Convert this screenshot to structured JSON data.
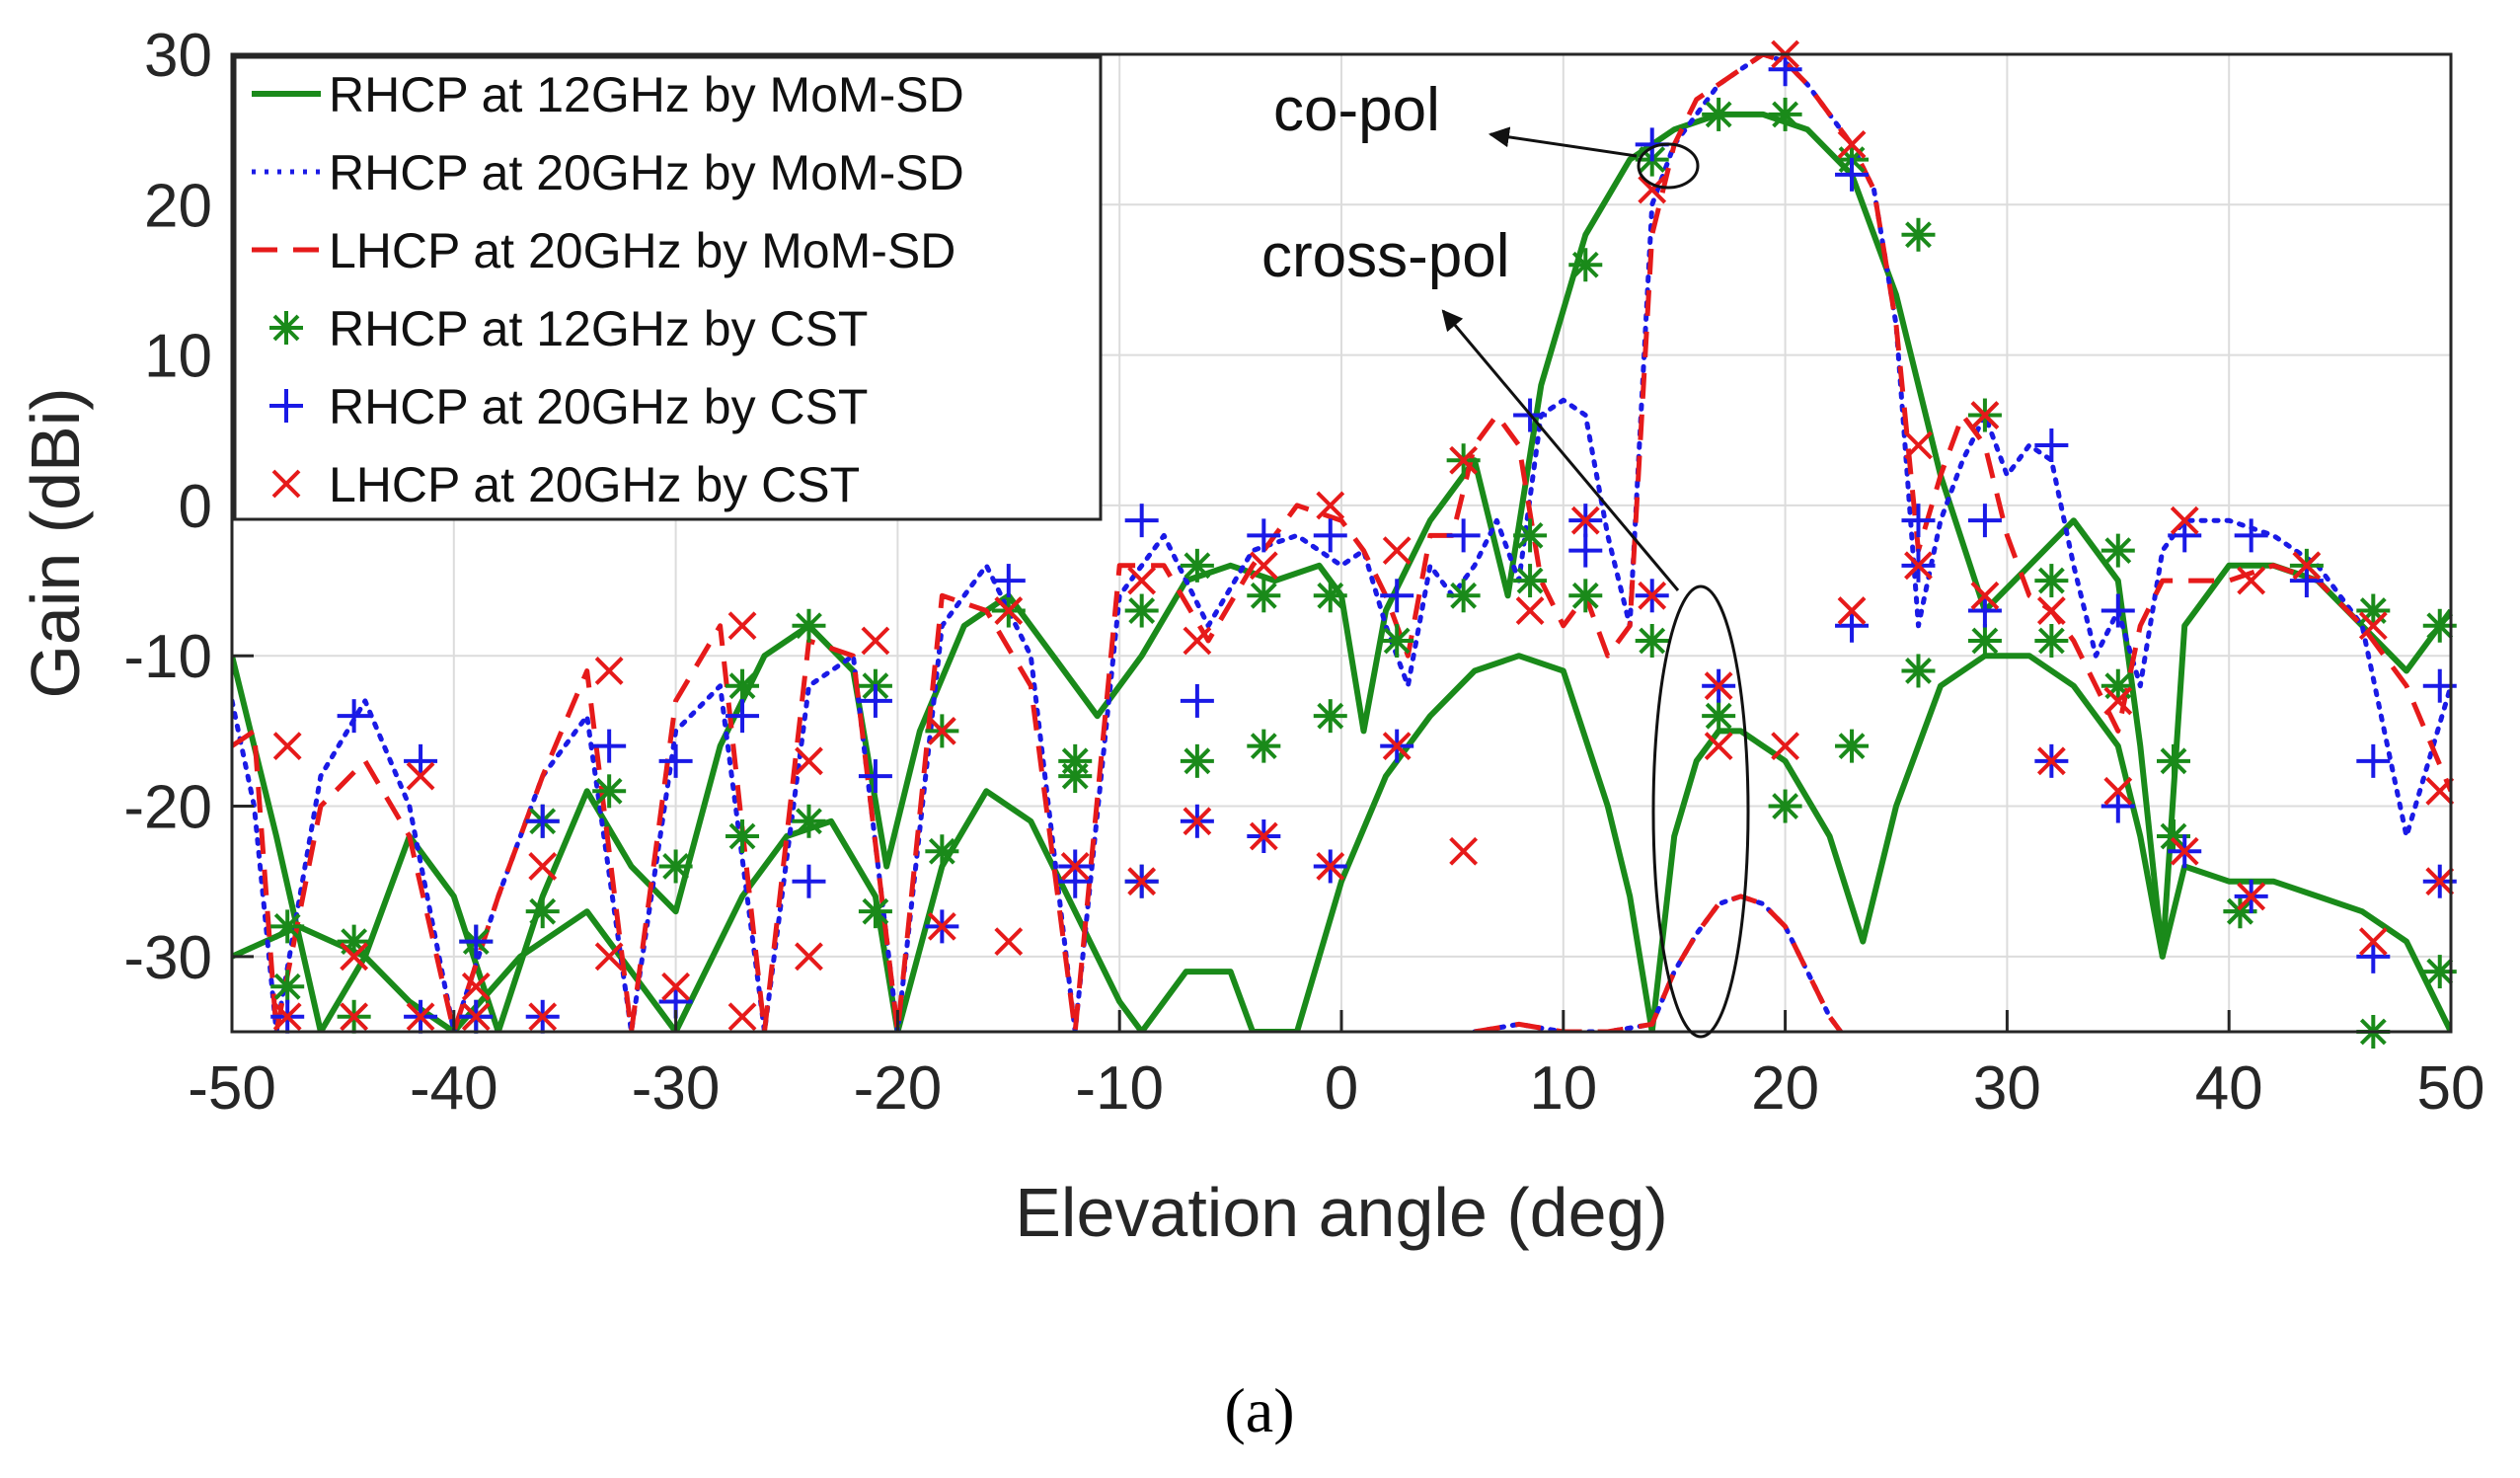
{
  "chart_data": {
    "type": "line",
    "xlabel": "Elevation angle (deg)",
    "ylabel": "Gain (dBi)",
    "xlim": [
      -50,
      50
    ],
    "ylim": [
      -35,
      30
    ],
    "xticks": [
      -50,
      -40,
      -30,
      -20,
      -10,
      0,
      10,
      20,
      30,
      40,
      50
    ],
    "yticks": [
      30,
      20,
      10,
      0,
      -10,
      -20,
      -30
    ],
    "grid": true,
    "legend_position": "top-left",
    "caption": "(a)",
    "annotations": [
      {
        "text": "co-pol",
        "points_to": [
          15.5,
          23
        ]
      },
      {
        "text": "cross-pol",
        "points_to": [
          16.5,
          -20
        ]
      }
    ],
    "series": [
      {
        "name": "RHCP at 12GHz by MoM-SD",
        "style": "solid",
        "color": "#1a8a1a",
        "x": [
          -50,
          -48,
          -46,
          -44,
          -42,
          -40,
          -38,
          -36,
          -34,
          -32,
          -30,
          -28,
          -26,
          -24,
          -22,
          -20.5,
          -19,
          -17,
          -15,
          -13,
          -11,
          -9,
          -7,
          -5,
          -3,
          -1,
          0,
          1,
          2,
          4,
          6,
          7.5,
          9,
          11,
          13,
          15,
          17,
          18,
          19,
          21,
          23,
          25,
          27,
          29,
          31,
          33,
          35,
          36,
          37,
          38,
          40,
          42,
          44,
          46,
          48,
          50
        ],
        "y": [
          -10,
          -22,
          -35,
          -30,
          -22,
          -26,
          -35,
          -26,
          -19,
          -24,
          -27,
          -16,
          -10,
          -8,
          -11,
          -24,
          -15,
          -8,
          -6,
          -10,
          -14,
          -10,
          -5,
          -4,
          -5,
          -4,
          -6,
          -15,
          -7,
          -1,
          3,
          -6,
          8,
          18,
          23,
          25,
          26,
          26,
          26,
          25,
          22,
          14,
          2,
          -7,
          -4,
          -1,
          -5,
          -16,
          -30,
          -8,
          -4,
          -4,
          -5,
          -8,
          -11,
          -7
        ]
      },
      {
        "name": "RHCP at 12GHz by MoM-SD (cross-pol)",
        "style": "solid",
        "color": "#1a8a1a",
        "legend": false,
        "x": [
          -50,
          -47,
          -44,
          -42,
          -40,
          -37,
          -34,
          -32,
          -30,
          -27,
          -25,
          -23,
          -21,
          -20,
          -18,
          -16,
          -14,
          -12,
          -10,
          -9,
          -7,
          -5,
          -4,
          -3,
          -2,
          0,
          2,
          4,
          6,
          8,
          10,
          12,
          13,
          14,
          15,
          16,
          17,
          18,
          19,
          20,
          22,
          23.5,
          25,
          27,
          29,
          31,
          33,
          35,
          36,
          37,
          38,
          40,
          42,
          44,
          46,
          48,
          50
        ],
        "y": [
          -30,
          -28,
          -30,
          -33,
          -35,
          -30,
          -27,
          -31,
          -35,
          -26,
          -22,
          -21,
          -26,
          -35,
          -24,
          -19,
          -21,
          -27,
          -33,
          -35,
          -31,
          -31,
          -35,
          -35,
          -35,
          -25,
          -18,
          -14,
          -11,
          -10,
          -11,
          -20,
          -26,
          -35,
          -22,
          -17,
          -15,
          -15,
          -16,
          -17,
          -22,
          -29,
          -20,
          -12,
          -10,
          -10,
          -12,
          -16,
          -22,
          -30,
          -24,
          -25,
          -25,
          -26,
          -27,
          -29,
          -35
        ]
      },
      {
        "name": "RHCP at 20GHz by MoM-SD",
        "style": "dotted",
        "color": "#1a1ae6",
        "x": [
          -50,
          -49,
          -48,
          -46,
          -44,
          -42,
          -40,
          -38,
          -36,
          -34,
          -32,
          -30,
          -28,
          -26,
          -24,
          -22,
          -20,
          -18,
          -16,
          -14,
          -12,
          -10,
          -8,
          -6,
          -4,
          -2,
          0,
          1,
          2,
          3,
          4,
          5,
          6,
          7,
          8,
          9,
          10,
          11,
          12,
          13,
          14,
          15,
          16,
          17,
          18,
          19,
          20,
          21,
          22,
          23,
          24,
          25,
          26,
          27,
          28,
          29,
          30,
          31,
          32,
          33,
          34,
          35,
          36,
          37,
          38,
          40,
          42,
          44,
          46,
          48,
          50
        ],
        "y": [
          -13,
          -20,
          -35,
          -18,
          -13,
          -20,
          -35,
          -26,
          -18,
          -14,
          -35,
          -15,
          -12,
          -35,
          -12,
          -10,
          -35,
          -8,
          -4,
          -10,
          -35,
          -6,
          -2,
          -8,
          -3,
          -2,
          -4,
          -3,
          -8,
          -12,
          -4,
          -6,
          -4,
          -1,
          -5,
          6,
          7,
          6,
          -2,
          -8,
          20,
          24,
          26,
          28,
          29,
          30,
          29.5,
          28,
          26,
          24,
          21,
          12,
          -8,
          -1,
          3,
          6,
          2,
          4,
          3,
          -4,
          -10,
          -7,
          -12,
          -3,
          -1,
          -1,
          -2,
          -4,
          -8,
          -22,
          -12
        ]
      },
      {
        "name": "LHCP at 20GHz by MoM-SD",
        "style": "dashed",
        "color": "#e61a1a",
        "x": [
          -50,
          -49,
          -48,
          -46,
          -44,
          -42,
          -40,
          -38,
          -36,
          -34,
          -32,
          -30,
          -28,
          -26,
          -24,
          -22,
          -20,
          -18,
          -16,
          -14,
          -12,
          -10,
          -8,
          -6,
          -4,
          -2,
          0,
          1,
          2,
          3,
          4,
          5,
          6,
          7,
          8,
          9,
          10,
          11,
          12,
          13,
          14,
          15,
          16,
          17,
          18,
          19,
          20,
          21,
          22,
          23,
          24,
          25,
          26,
          27,
          28,
          29,
          30,
          31,
          32,
          33,
          34,
          35,
          36,
          37,
          38,
          40,
          42,
          44,
          46,
          48,
          50
        ],
        "y": [
          -16,
          -15,
          -35,
          -20,
          -17,
          -22,
          -35,
          -26,
          -18,
          -11,
          -35,
          -13,
          -8,
          -35,
          -9,
          -10,
          -35,
          -6,
          -7,
          -12,
          -35,
          -4,
          -4,
          -9,
          -4,
          0,
          -1,
          -3,
          -6,
          -10,
          -2,
          -2,
          4,
          6,
          4,
          -5,
          -8,
          -6,
          -10,
          -8,
          18,
          24,
          27,
          28,
          29,
          30,
          29.5,
          28,
          26,
          24,
          21,
          12,
          -3,
          2,
          6,
          4,
          -2,
          -6,
          -7,
          -9,
          -12,
          -15,
          -8,
          -5,
          -5,
          -5,
          -4,
          -5,
          -8,
          -12,
          -19
        ]
      },
      {
        "name": "RHCP at 20GHz by MoM-SD (cross-pol)",
        "style": "dotted",
        "color": "#1a1ae6",
        "legend": false,
        "x": [
          6,
          8,
          10,
          12,
          14,
          15,
          16,
          17,
          18,
          19,
          20,
          21,
          22,
          22.5
        ],
        "y": [
          -35,
          -34.5,
          -35,
          -35,
          -34.5,
          -31,
          -28.5,
          -26.5,
          -26,
          -26.5,
          -28,
          -31,
          -34,
          -35
        ]
      },
      {
        "name": "LHCP at 20GHz by MoM-SD (cross-pol)",
        "style": "dashed",
        "color": "#e61a1a",
        "legend": false,
        "x": [
          6,
          8,
          10,
          12,
          14,
          15,
          16,
          17,
          18,
          19,
          20,
          21,
          22,
          22.5
        ],
        "y": [
          -35,
          -34.5,
          -35,
          -35,
          -34.5,
          -31,
          -28.5,
          -26.5,
          -26,
          -26.5,
          -28,
          -31,
          -34,
          -35
        ]
      },
      {
        "name": "RHCP at 12GHz by CST",
        "marker": "asterisk",
        "color": "#1a8a1a",
        "x": [
          -47.5,
          -47.5,
          -44.5,
          -44.5,
          -39,
          -39,
          -36,
          -36,
          -33,
          -30,
          -27,
          -27,
          -24,
          -24,
          -21,
          -21,
          -18,
          -18,
          -15,
          -12,
          -12,
          -9,
          -9,
          -6.5,
          -6.5,
          -3.5,
          -3.5,
          -0.5,
          -0.5,
          2.5,
          5.5,
          5.5,
          8.5,
          8.5,
          11,
          11,
          14,
          14,
          17,
          17,
          20,
          20,
          23,
          23,
          26,
          26,
          29,
          29,
          32,
          32,
          35,
          35,
          37.5,
          37.5,
          40.5,
          40.5,
          43.5,
          46.5,
          46.5,
          49.5,
          49.5
        ],
        "y": [
          -28,
          -32,
          -29,
          -34,
          -29,
          -34,
          -21,
          -27,
          -19,
          -24,
          -12,
          -22,
          -8,
          -21,
          -12,
          -27,
          -15,
          -23,
          -7,
          -17,
          -18,
          -7,
          -25,
          -17,
          -4,
          -6,
          -16,
          -6,
          -14,
          -9,
          3,
          -6,
          -5,
          -2,
          -6,
          16,
          23,
          -9,
          26,
          -14,
          26,
          -20,
          23,
          -16,
          18,
          -11,
          6,
          -9,
          -5,
          -9,
          -3,
          -12,
          -17,
          -22,
          -27,
          -27,
          -4,
          -7,
          -35,
          -8,
          -31
        ]
      },
      {
        "name": "RHCP at 20GHz by CST",
        "marker": "plus",
        "color": "#1a1ae6",
        "x": [
          -47.5,
          -44.5,
          -41.5,
          -41.5,
          -39,
          -39,
          -36,
          -36,
          -33,
          -30,
          -30,
          -27,
          -24,
          -21,
          -21,
          -18,
          -15,
          -12,
          -12,
          -9,
          -9,
          -6.5,
          -6.5,
          -3.5,
          -3.5,
          -0.5,
          -0.5,
          2.5,
          2.5,
          5.5,
          8.5,
          11,
          11,
          14,
          14,
          17,
          20,
          23,
          23,
          26,
          26,
          29,
          29,
          32,
          32,
          35,
          35,
          38,
          38,
          41,
          41,
          43.5,
          46.5,
          46.5,
          49.5,
          49.5
        ],
        "y": [
          -34,
          -14,
          -17,
          -34,
          -29,
          -34,
          -21,
          -34,
          -16,
          -17,
          -33,
          -14,
          -25,
          -18,
          -13,
          -28,
          -5,
          -24,
          -25,
          -1,
          -25,
          -13,
          -21,
          -2,
          -22,
          -2,
          -24,
          -6,
          -16,
          -2,
          6,
          -1,
          -3,
          24,
          -6,
          -12,
          29,
          -8,
          22,
          -1,
          -4,
          -1,
          -7,
          4,
          -17,
          -7,
          -20,
          -2,
          -23,
          -2,
          -26,
          -5,
          -17,
          -30,
          -12,
          -25
        ]
      },
      {
        "name": "LHCP at 20GHz by CST",
        "marker": "x",
        "color": "#e61a1a",
        "x": [
          -47.5,
          -47.5,
          -44.5,
          -44.5,
          -41.5,
          -41.5,
          -39,
          -39,
          -36,
          -36,
          -33,
          -33,
          -30,
          -27,
          -27,
          -24,
          -24,
          -21,
          -18,
          -18,
          -15,
          -15,
          -12,
          -9,
          -9,
          -6.5,
          -6.5,
          -3.5,
          -3.5,
          -0.5,
          -0.5,
          2.5,
          2.5,
          5.5,
          5.5,
          8.5,
          11,
          14,
          14,
          17,
          17,
          20,
          20,
          23,
          23,
          26,
          26,
          29,
          29,
          32,
          32,
          35,
          35,
          38,
          38,
          41,
          41,
          43.5,
          46.5,
          46.5,
          49.5,
          49.5
        ],
        "y": [
          -16,
          -34,
          -30,
          -34,
          -18,
          -34,
          -32,
          -34,
          -24,
          -34,
          -11,
          -30,
          -32,
          -8,
          -34,
          -17,
          -30,
          -9,
          -15,
          -28,
          -7,
          -29,
          -24,
          -5,
          -25,
          -9,
          -21,
          -4,
          -22,
          0,
          -24,
          -3,
          -16,
          3,
          -23,
          -7,
          -1,
          21,
          -6,
          -12,
          -16,
          30,
          -16,
          24,
          -7,
          4,
          -4,
          6,
          -6,
          -17,
          -7,
          -13,
          -19,
          -1,
          -23,
          -5,
          -26,
          -4,
          -8,
          -29,
          -19,
          -25
        ]
      }
    ]
  }
}
